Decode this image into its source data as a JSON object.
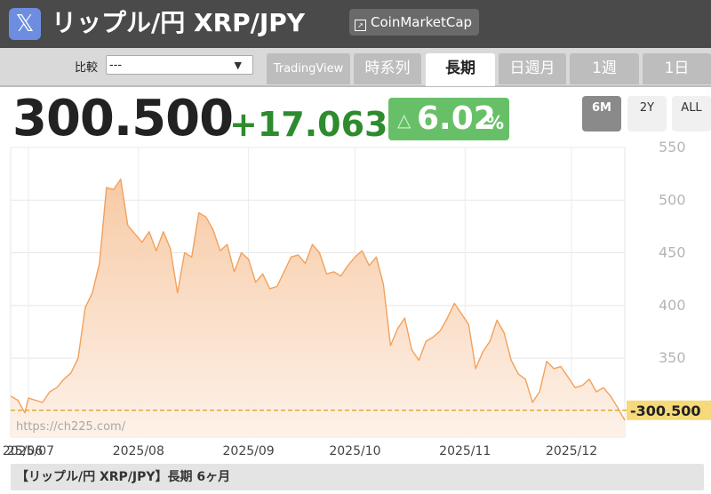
{
  "header": {
    "x_icon_glyph": "𝕏",
    "title": "リップル/円 XRP/JPY",
    "source_button": "CoinMarketCap"
  },
  "toolbar": {
    "compare_label": "比較",
    "compare_value": "---",
    "tabs": [
      {
        "label": "TradingView",
        "active": false
      },
      {
        "label": "時系列",
        "active": false
      },
      {
        "label": "長期",
        "active": true
      },
      {
        "label": "日週月",
        "active": false
      },
      {
        "label": "1週",
        "active": false
      },
      {
        "label": "1日",
        "active": false
      }
    ]
  },
  "quote": {
    "price": "300.500",
    "change": "+17.063",
    "change_pct": "6.02",
    "pct_sign": "%",
    "up_glyph": "△"
  },
  "ranges": [
    {
      "label": "6M",
      "active": true
    },
    {
      "label": "2Y",
      "active": false
    },
    {
      "label": "ALL",
      "active": false
    }
  ],
  "colors": {
    "line": "#f2a15b",
    "fill_top": "#f7c7a0",
    "fill_bottom": "#fdf0e6",
    "ref_line": "#d4a017",
    "price_label_bg": "#f5d97a"
  },
  "chart_data": {
    "type": "area",
    "watermark": "https://ch225.com/",
    "ylim": [
      275,
      550
    ],
    "yticks": [
      550,
      500,
      450,
      400,
      350
    ],
    "current_price_label": "300.500",
    "reference_value": 300.5,
    "x_tick_labels": [
      {
        "date": "2025-06-30",
        "label": "25/06"
      },
      {
        "date": "2025-07-01",
        "label": "2025/07"
      },
      {
        "date": "2025-08-01",
        "label": "2025/08"
      },
      {
        "date": "2025-09-01",
        "label": "2025/09"
      },
      {
        "date": "2025-10-01",
        "label": "2025/10"
      },
      {
        "date": "2025-11-01",
        "label": "2025/11"
      },
      {
        "date": "2025-12-01",
        "label": "2025/12"
      }
    ],
    "series": [
      {
        "points": [
          [
            "2025-06-26",
            314
          ],
          [
            "2025-06-28",
            310
          ],
          [
            "2025-06-30",
            298
          ],
          [
            "2025-07-01",
            312
          ],
          [
            "2025-07-03",
            310
          ],
          [
            "2025-07-05",
            308
          ],
          [
            "2025-07-07",
            318
          ],
          [
            "2025-07-09",
            322
          ],
          [
            "2025-07-11",
            330
          ],
          [
            "2025-07-13",
            336
          ],
          [
            "2025-07-15",
            350
          ],
          [
            "2025-07-17",
            398
          ],
          [
            "2025-07-19",
            412
          ],
          [
            "2025-07-21",
            440
          ],
          [
            "2025-07-23",
            512
          ],
          [
            "2025-07-25",
            510
          ],
          [
            "2025-07-27",
            520
          ],
          [
            "2025-07-29",
            476
          ],
          [
            "2025-07-31",
            468
          ],
          [
            "2025-08-02",
            460
          ],
          [
            "2025-08-04",
            470
          ],
          [
            "2025-08-06",
            452
          ],
          [
            "2025-08-08",
            470
          ],
          [
            "2025-08-10",
            454
          ],
          [
            "2025-08-12",
            412
          ],
          [
            "2025-08-14",
            450
          ],
          [
            "2025-08-16",
            446
          ],
          [
            "2025-08-18",
            488
          ],
          [
            "2025-08-20",
            484
          ],
          [
            "2025-08-22",
            472
          ],
          [
            "2025-08-24",
            452
          ],
          [
            "2025-08-26",
            458
          ],
          [
            "2025-08-28",
            432
          ],
          [
            "2025-08-30",
            450
          ],
          [
            "2025-09-01",
            444
          ],
          [
            "2025-09-03",
            422
          ],
          [
            "2025-09-05",
            430
          ],
          [
            "2025-09-07",
            416
          ],
          [
            "2025-09-09",
            418
          ],
          [
            "2025-09-11",
            432
          ],
          [
            "2025-09-13",
            446
          ],
          [
            "2025-09-15",
            448
          ],
          [
            "2025-09-17",
            440
          ],
          [
            "2025-09-19",
            458
          ],
          [
            "2025-09-21",
            450
          ],
          [
            "2025-09-23",
            430
          ],
          [
            "2025-09-25",
            432
          ],
          [
            "2025-09-27",
            428
          ],
          [
            "2025-09-29",
            438
          ],
          [
            "2025-10-01",
            446
          ],
          [
            "2025-10-03",
            452
          ],
          [
            "2025-10-05",
            438
          ],
          [
            "2025-10-07",
            446
          ],
          [
            "2025-10-09",
            420
          ],
          [
            "2025-10-11",
            362
          ],
          [
            "2025-10-13",
            378
          ],
          [
            "2025-10-15",
            388
          ],
          [
            "2025-10-17",
            358
          ],
          [
            "2025-10-19",
            348
          ],
          [
            "2025-10-21",
            366
          ],
          [
            "2025-10-23",
            370
          ],
          [
            "2025-10-25",
            376
          ],
          [
            "2025-10-27",
            388
          ],
          [
            "2025-10-29",
            402
          ],
          [
            "2025-10-31",
            392
          ],
          [
            "2025-11-02",
            382
          ],
          [
            "2025-11-04",
            340
          ],
          [
            "2025-11-06",
            356
          ],
          [
            "2025-11-08",
            366
          ],
          [
            "2025-11-10",
            386
          ],
          [
            "2025-11-12",
            374
          ],
          [
            "2025-11-14",
            348
          ],
          [
            "2025-11-16",
            335
          ],
          [
            "2025-11-18",
            330
          ],
          [
            "2025-11-20",
            308
          ],
          [
            "2025-11-22",
            318
          ],
          [
            "2025-11-24",
            347
          ],
          [
            "2025-11-26",
            340
          ],
          [
            "2025-11-28",
            342
          ],
          [
            "2025-11-30",
            332
          ],
          [
            "2025-12-02",
            322
          ],
          [
            "2025-12-04",
            324
          ],
          [
            "2025-12-06",
            330
          ],
          [
            "2025-12-08",
            318
          ],
          [
            "2025-12-10",
            322
          ],
          [
            "2025-12-12",
            314
          ],
          [
            "2025-12-14",
            303
          ],
          [
            "2025-12-16",
            291
          ]
        ]
      }
    ]
  }
}
